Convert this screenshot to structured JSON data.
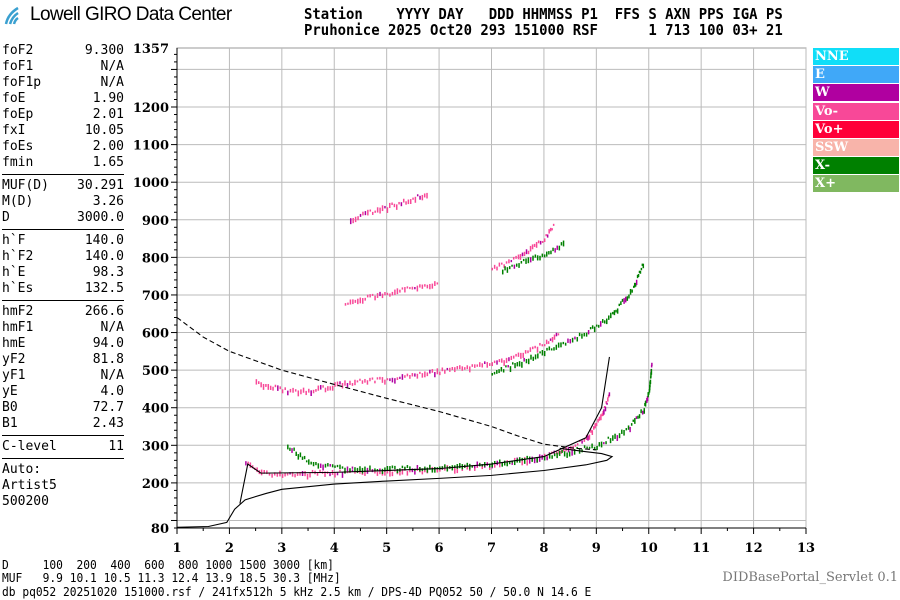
{
  "logo": {
    "text": "Lowell GIRO Data Center"
  },
  "header": {
    "line1": "Station    YYYY DAY   DDD HHMMSS P1  FFS S AXN PPS IGA PS",
    "line2": "Pruhonice 2025 Oct20 293 151000 RSF      1 713 100 03+ 21"
  },
  "panel": {
    "groups": [
      [
        [
          "foF2",
          "9.300"
        ],
        [
          "foF1",
          "N/A"
        ],
        [
          "foF1p",
          "N/A"
        ],
        [
          "foE",
          "1.90"
        ],
        [
          "foEp",
          "2.01"
        ],
        [
          "fxI",
          "10.05"
        ],
        [
          "foEs",
          "2.00"
        ],
        [
          "fmin",
          "1.65"
        ]
      ],
      [
        [
          "MUF(D)",
          "30.291"
        ],
        [
          "M(D)",
          "3.26"
        ],
        [
          "D",
          "3000.0"
        ]
      ],
      [
        [
          "h`F",
          "140.0"
        ],
        [
          "h`F2",
          "140.0"
        ],
        [
          "h`E",
          "98.3"
        ],
        [
          "h`Es",
          "132.5"
        ]
      ],
      [
        [
          "hmF2",
          "266.6"
        ],
        [
          "hmF1",
          "N/A"
        ],
        [
          "hmE",
          "94.0"
        ],
        [
          "yF2",
          "81.8"
        ],
        [
          "yF1",
          "N/A"
        ],
        [
          "yE",
          "4.0"
        ],
        [
          "B0",
          "72.7"
        ],
        [
          "B1",
          "2.43"
        ]
      ],
      [
        [
          "C-level",
          "11"
        ]
      ]
    ],
    "auto": [
      "Auto:",
      "Artist5",
      "500200"
    ]
  },
  "legend": [
    {
      "label": "NNE",
      "color": "#10def8"
    },
    {
      "label": "E",
      "color": "#40a8f8"
    },
    {
      "label": "W",
      "color": "#b000a0"
    },
    {
      "label": "Vo-",
      "color": "#f84898"
    },
    {
      "label": "Vo+",
      "color": "#ff0038"
    },
    {
      "label": "SSW",
      "color": "#f8b4aa"
    },
    {
      "label": "X-",
      "color": "#008000"
    },
    {
      "label": "X+",
      "color": "#80b860"
    }
  ],
  "footer": {
    "d_row": "D     100  200  400  600  800 1000 1500 3000 [km]",
    "muf_row": "MUF   9.9 10.1 10.5 11.3 12.4 13.9 18.5 30.3 [MHz]",
    "info": "db pq052 20251020 151000.rsf / 241fx512h 5 kHz 2.5 km / DPS-4D PQ052 50 / 50.0 N 14.6 E",
    "servlet": "DIDBasePortal_Servlet 0.1"
  },
  "chart_data": {
    "type": "scatter",
    "xlabel": "",
    "ylabel": "",
    "xlim": [
      1,
      13
    ],
    "ylim": [
      80,
      1357
    ],
    "xticks": [
      1,
      2,
      3,
      4,
      5,
      6,
      7,
      8,
      9,
      10,
      11,
      12,
      13
    ],
    "yticks": [
      1357,
      1200,
      1100,
      1000,
      900,
      800,
      700,
      600,
      500,
      400,
      300,
      200,
      80
    ],
    "grid": true,
    "traces": [
      {
        "polarization": "Vo-",
        "color": "#f84898",
        "points": [
          [
            2.3,
            255
          ],
          [
            2.6,
            228
          ],
          [
            3,
            225
          ],
          [
            4,
            228
          ],
          [
            5,
            232
          ],
          [
            6,
            238
          ],
          [
            7,
            250
          ],
          [
            8,
            270
          ],
          [
            8.5,
            295
          ],
          [
            8.8,
            320
          ],
          [
            9.1,
            380
          ],
          [
            9.25,
            440
          ]
        ]
      },
      {
        "polarization": "X-",
        "color": "#008000",
        "points": [
          [
            3.1,
            300
          ],
          [
            3.5,
            258
          ],
          [
            4,
            242
          ],
          [
            5,
            238
          ],
          [
            6,
            242
          ],
          [
            7,
            252
          ],
          [
            8,
            270
          ],
          [
            9,
            300
          ],
          [
            9.6,
            345
          ],
          [
            9.9,
            400
          ],
          [
            10,
            450
          ],
          [
            10.05,
            520
          ]
        ]
      },
      {
        "polarization": "Vo-",
        "color": "#f84898",
        "points": [
          [
            2.5,
            470
          ],
          [
            3,
            448
          ],
          [
            3.5,
            445
          ],
          [
            4,
            462
          ],
          [
            5,
            478
          ],
          [
            6,
            498
          ],
          [
            7,
            520
          ],
          [
            7.5,
            540
          ],
          [
            8,
            570
          ],
          [
            8.3,
            605
          ]
        ]
      },
      {
        "polarization": "X-",
        "color": "#008000",
        "points": [
          [
            7,
            490
          ],
          [
            8,
            550
          ],
          [
            8.8,
            600
          ],
          [
            9.3,
            650
          ],
          [
            9.7,
            720
          ],
          [
            9.9,
            790
          ]
        ]
      },
      {
        "polarization": "Vo-",
        "color": "#f84898",
        "points": [
          [
            4.2,
            680
          ],
          [
            5,
            705
          ],
          [
            6,
            735
          ]
        ]
      },
      {
        "polarization": "Vo-",
        "color": "#f84898",
        "points": [
          [
            7,
            770
          ],
          [
            7.5,
            800
          ],
          [
            8,
            850
          ],
          [
            8.2,
            890
          ]
        ]
      },
      {
        "polarization": "X-",
        "color": "#008000",
        "points": [
          [
            7.2,
            770
          ],
          [
            8,
            810
          ],
          [
            8.4,
            840
          ]
        ]
      },
      {
        "polarization": "Vo-",
        "color": "#f84898",
        "points": [
          [
            4.3,
            905
          ],
          [
            5,
            935
          ],
          [
            5.8,
            972
          ]
        ]
      }
    ],
    "profiles": [
      {
        "style": "solid",
        "points": [
          [
            1,
            82
          ],
          [
            1.6,
            84
          ],
          [
            1.95,
            95
          ],
          [
            2.1,
            130
          ],
          [
            2.3,
            155
          ],
          [
            2.7,
            172
          ],
          [
            3,
            183
          ],
          [
            4,
            197
          ],
          [
            5,
            205
          ],
          [
            6,
            212
          ],
          [
            7,
            220
          ],
          [
            8,
            233
          ],
          [
            8.8,
            248
          ],
          [
            9.2,
            260
          ],
          [
            9.3,
            270
          ],
          [
            9.1,
            278
          ],
          [
            8.8,
            283
          ],
          [
            8.3,
            292
          ]
        ]
      },
      {
        "style": "solid",
        "points": [
          [
            2.2,
            145
          ],
          [
            2.35,
            250
          ],
          [
            2.6,
            226
          ],
          [
            4,
            228
          ],
          [
            6,
            238
          ],
          [
            7,
            250
          ],
          [
            8,
            270
          ],
          [
            8.8,
            320
          ],
          [
            9.1,
            400
          ],
          [
            9.25,
            535
          ]
        ]
      },
      {
        "style": "dashed",
        "points": [
          [
            1,
            640
          ],
          [
            1.5,
            588
          ],
          [
            2,
            550
          ],
          [
            3,
            500
          ],
          [
            4,
            462
          ],
          [
            5,
            425
          ],
          [
            6,
            390
          ],
          [
            7,
            350
          ],
          [
            7.5,
            325
          ],
          [
            8,
            303
          ],
          [
            8.6,
            292
          ],
          [
            9,
            288
          ]
        ]
      }
    ]
  }
}
